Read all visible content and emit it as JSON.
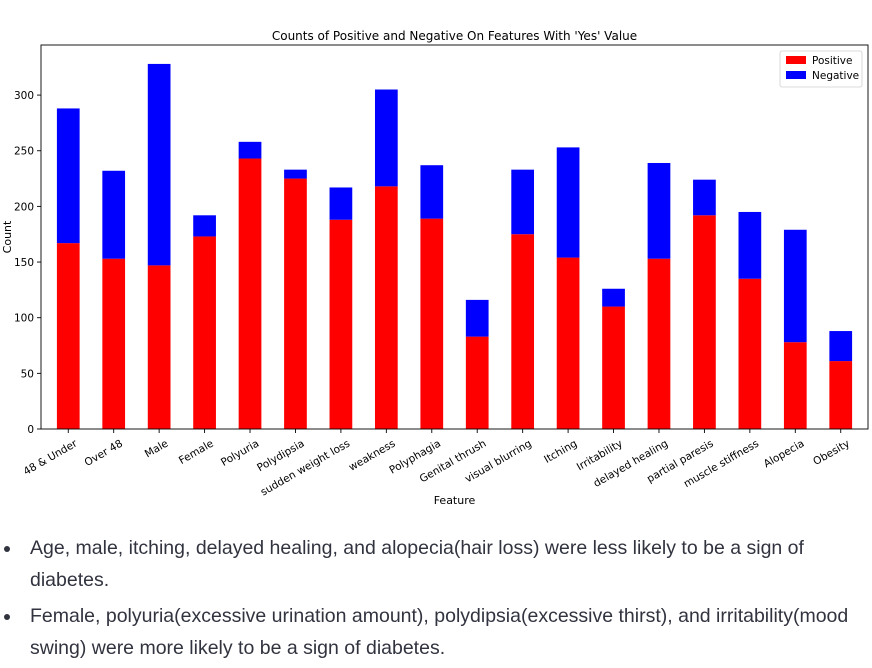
{
  "chart_data": {
    "type": "bar",
    "stacked": true,
    "title": "Counts of Positive and Negative On Features With 'Yes' Value",
    "xlabel": "Feature",
    "ylabel": "Count",
    "ylim": [
      0,
      345
    ],
    "yticks": [
      0,
      50,
      100,
      150,
      200,
      250,
      300
    ],
    "categories": [
      "48 & Under",
      "Over 48",
      "Male",
      "Female",
      "Polyuria",
      "Polydipsia",
      "sudden weight loss",
      "weakness",
      "Polyphagia",
      "Genital thrush",
      "visual blurring",
      "Itching",
      "Irritability",
      "delayed healing",
      "partial paresis",
      "muscle stiffness",
      "Alopecia",
      "Obesity"
    ],
    "series": [
      {
        "name": "Positive",
        "color": "#ff0000",
        "values": [
          167,
          153,
          147,
          173,
          243,
          225,
          188,
          218,
          189,
          83,
          175,
          154,
          110,
          153,
          192,
          135,
          78,
          61
        ]
      },
      {
        "name": "Negative",
        "color": "#0000ff",
        "values": [
          121,
          79,
          181,
          19,
          15,
          8,
          29,
          87,
          48,
          33,
          58,
          99,
          16,
          86,
          32,
          60,
          101,
          27
        ]
      }
    ],
    "legend_position": "top-right",
    "grid": false
  },
  "notes": [
    "Age, male, itching, delayed healing, and alopecia(hair loss) were less likely to be a sign of diabetes.",
    "Female, polyuria(excessive urination amount), polydipsia(excessive thirst), and irritability(mood swing) were more likely to be a sign of diabetes."
  ]
}
